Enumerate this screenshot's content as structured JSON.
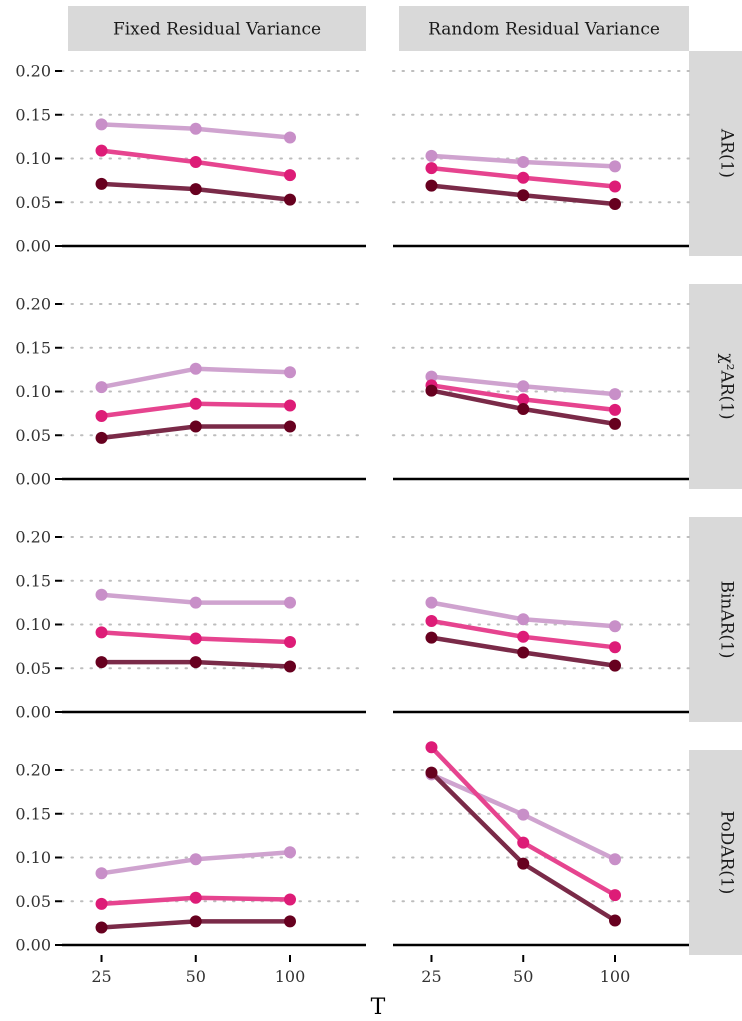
{
  "chart_data": {
    "type": "line",
    "xlabel": "T",
    "x": [
      25,
      50,
      100
    ],
    "ylim": [
      0,
      0.2
    ],
    "yticks": [
      "0.00",
      "0.05",
      "0.10",
      "0.15",
      "0.20"
    ],
    "grid": "dotted horizontal major lines",
    "legend": "none",
    "columns": [
      "Fixed Residual Variance",
      "Random Residual Variance"
    ],
    "rows": [
      "AR(1)",
      "χ²AR(1)",
      "BinAR(1)",
      "PoDAR(1)"
    ],
    "series_colors": [
      "#cfa3cf",
      "#e6448f",
      "#7a2a48"
    ],
    "series_point_colors": [
      "#c88fc8",
      "#dd1c77",
      "#67001f"
    ],
    "panels": [
      {
        "row": "AR(1)",
        "column": "Fixed Residual Variance",
        "series": [
          {
            "values": [
              0.139,
              0.134,
              0.124
            ]
          },
          {
            "values": [
              0.109,
              0.096,
              0.081
            ]
          },
          {
            "values": [
              0.071,
              0.065,
              0.053
            ]
          }
        ]
      },
      {
        "row": "AR(1)",
        "column": "Random Residual Variance",
        "series": [
          {
            "values": [
              0.103,
              0.096,
              0.091
            ]
          },
          {
            "values": [
              0.089,
              0.078,
              0.068
            ]
          },
          {
            "values": [
              0.069,
              0.058,
              0.048
            ]
          }
        ]
      },
      {
        "row": "χ²AR(1)",
        "column": "Fixed Residual Variance",
        "series": [
          {
            "values": [
              0.105,
              0.126,
              0.122
            ]
          },
          {
            "values": [
              0.072,
              0.086,
              0.084
            ]
          },
          {
            "values": [
              0.047,
              0.06,
              0.06
            ]
          }
        ]
      },
      {
        "row": "χ²AR(1)",
        "column": "Random Residual Variance",
        "series": [
          {
            "values": [
              0.117,
              0.106,
              0.097
            ]
          },
          {
            "values": [
              0.107,
              0.091,
              0.079
            ]
          },
          {
            "values": [
              0.101,
              0.08,
              0.063
            ]
          }
        ]
      },
      {
        "row": "BinAR(1)",
        "column": "Fixed Residual Variance",
        "series": [
          {
            "values": [
              0.134,
              0.125,
              0.125
            ]
          },
          {
            "values": [
              0.091,
              0.084,
              0.08
            ]
          },
          {
            "values": [
              0.057,
              0.057,
              0.052
            ]
          }
        ]
      },
      {
        "row": "BinAR(1)",
        "column": "Random Residual Variance",
        "series": [
          {
            "values": [
              0.125,
              0.106,
              0.098
            ]
          },
          {
            "values": [
              0.104,
              0.086,
              0.074
            ]
          },
          {
            "values": [
              0.085,
              0.068,
              0.053
            ]
          }
        ]
      },
      {
        "row": "PoDAR(1)",
        "column": "Fixed Residual Variance",
        "series": [
          {
            "values": [
              0.082,
              0.098,
              0.106
            ]
          },
          {
            "values": [
              0.047,
              0.054,
              0.052
            ]
          },
          {
            "values": [
              0.02,
              0.027,
              0.027
            ]
          }
        ]
      },
      {
        "row": "PoDAR(1)",
        "column": "Random Residual Variance",
        "series": [
          {
            "values": [
              0.195,
              0.149,
              0.098
            ]
          },
          {
            "values": [
              0.226,
              0.117,
              0.057
            ]
          },
          {
            "values": [
              0.197,
              0.093,
              0.028
            ]
          }
        ]
      }
    ]
  }
}
